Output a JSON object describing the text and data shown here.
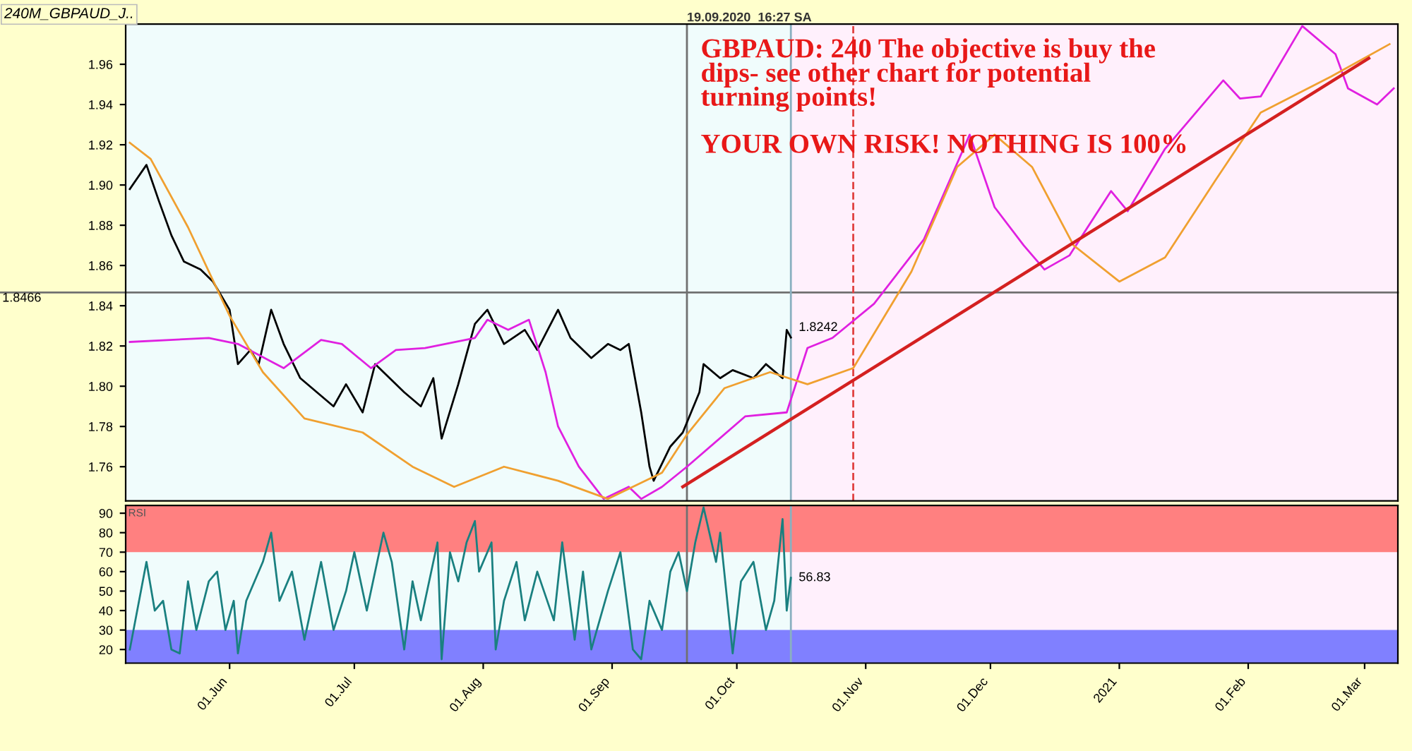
{
  "chart_data": [
    {
      "type": "line",
      "title": "240M_GBPAUD_J..",
      "annotations": [
        "GBPAUD: 240 The objective is buy the\ndips- see other chart for potential\nturning points!",
        "YOUR OWN RISK! NOTHING IS 100%",
        {
          "text": "1.8242",
          "x": "2020-10-14",
          "y": 1.8242
        }
      ],
      "series": [
        {
          "color": "#000000",
          "x": [
            "2020-05-08",
            "2020-05-12",
            "2020-05-15",
            "2020-05-18",
            "2020-05-21",
            "2020-05-25",
            "2020-05-28",
            "2020-06-01",
            "2020-06-03",
            "2020-06-06",
            "2020-06-08",
            "2020-06-11",
            "2020-06-14",
            "2020-06-18",
            "2020-06-22",
            "2020-06-26",
            "2020-06-29",
            "2020-07-03",
            "2020-07-06",
            "2020-07-13",
            "2020-07-17",
            "2020-07-20",
            "2020-07-22",
            "2020-07-26",
            "2020-07-30",
            "2020-08-02",
            "2020-08-06",
            "2020-08-11",
            "2020-08-14",
            "2020-08-19",
            "2020-08-22",
            "2020-08-27",
            "2020-08-31",
            "2020-09-03",
            "2020-09-05",
            "2020-09-08",
            "2020-09-10",
            "2020-09-11",
            "2020-09-15",
            "2020-09-18",
            "2020-09-22",
            "2020-09-23",
            "2020-09-27",
            "2020-09-30",
            "2020-10-05",
            "2020-10-08",
            "2020-10-12",
            "2020-10-13",
            "2020-10-14"
          ],
          "values": [
            1.898,
            1.91,
            1.892,
            1.875,
            1.862,
            1.858,
            1.852,
            1.838,
            1.811,
            1.818,
            1.811,
            1.838,
            1.821,
            1.804,
            1.797,
            1.79,
            1.801,
            1.787,
            1.811,
            1.797,
            1.79,
            1.804,
            1.774,
            1.801,
            1.831,
            1.838,
            1.821,
            1.828,
            1.818,
            1.838,
            1.824,
            1.814,
            1.821,
            1.818,
            1.821,
            1.787,
            1.76,
            1.753,
            1.77,
            1.777,
            1.797,
            1.811,
            1.804,
            1.808,
            1.804,
            1.811,
            1.804,
            1.828,
            1.8242
          ]
        },
        {
          "color": "#e020e0",
          "x": [
            "2020-05-08",
            "2020-05-27",
            "2020-06-03",
            "2020-06-14",
            "2020-06-23",
            "2020-06-28",
            "2020-07-05",
            "2020-07-11",
            "2020-07-18",
            "2020-07-30",
            "2020-08-02",
            "2020-08-07",
            "2020-08-12",
            "2020-08-16",
            "2020-08-19",
            "2020-08-24",
            "2020-08-30",
            "2020-09-05",
            "2020-09-08",
            "2020-09-13",
            "2020-09-19",
            "2020-10-03",
            "2020-10-13",
            "2020-10-18",
            "2020-10-24",
            "2020-11-03",
            "2020-11-15",
            "2020-11-26",
            "2020-12-02",
            "2020-12-09",
            "2020-12-14",
            "2020-12-20",
            "2020-12-30",
            "2021-01-03",
            "2021-01-12",
            "2021-01-26",
            "2021-01-30",
            "2021-02-04",
            "2021-02-14",
            "2021-02-22",
            "2021-02-25",
            "2021-03-04",
            "2021-03-08"
          ],
          "values": [
            1.822,
            1.824,
            1.821,
            1.809,
            1.823,
            1.821,
            1.809,
            1.818,
            1.819,
            1.824,
            1.833,
            1.828,
            1.833,
            1.807,
            1.78,
            1.76,
            1.744,
            1.75,
            1.744,
            1.75,
            1.76,
            1.785,
            1.787,
            1.819,
            1.824,
            1.841,
            1.873,
            1.925,
            1.889,
            1.87,
            1.858,
            1.865,
            1.897,
            1.887,
            1.918,
            1.952,
            1.943,
            1.944,
            1.979,
            1.965,
            1.948,
            1.94,
            1.948
          ]
        },
        {
          "color": "#f0a030",
          "x": [
            "2020-05-08",
            "2020-05-13",
            "2020-05-22",
            "2020-06-01",
            "2020-06-09",
            "2020-06-19",
            "2020-07-03",
            "2020-07-15",
            "2020-07-25",
            "2020-08-06",
            "2020-08-19",
            "2020-08-31",
            "2020-09-13",
            "2020-09-19",
            "2020-09-28",
            "2020-10-09",
            "2020-10-18",
            "2020-10-29",
            "2020-11-12",
            "2020-11-23",
            "2020-12-02",
            "2020-12-11",
            "2020-12-21",
            "2021-01-01",
            "2021-01-12",
            "2021-01-24",
            "2021-02-04",
            "2021-02-21",
            "2021-03-07"
          ],
          "values": [
            1.921,
            1.913,
            1.879,
            1.835,
            1.807,
            1.784,
            1.777,
            1.76,
            1.75,
            1.76,
            1.753,
            1.744,
            1.757,
            1.776,
            1.799,
            1.807,
            1.801,
            1.809,
            1.857,
            1.909,
            1.925,
            1.909,
            1.87,
            1.852,
            1.864,
            1.902,
            1.936,
            1.954,
            1.97
          ]
        },
        {
          "color": "#d42020",
          "x": [
            "2020-09-18",
            "2021-03-02"
          ],
          "values": [
            1.75,
            1.963
          ]
        }
      ],
      "xlim": [
        "2020-05-07",
        "2021-03-09"
      ],
      "ylim": [
        1.743,
        1.98
      ],
      "yticks": [
        {
          "value": 1.76,
          "label": "1.76"
        },
        {
          "value": 1.78,
          "label": "1.78"
        },
        {
          "value": 1.8,
          "label": "1.80"
        },
        {
          "value": 1.82,
          "label": "1.82"
        },
        {
          "value": 1.84,
          "label": "1.84"
        },
        {
          "value": 1.86,
          "label": "1.86"
        },
        {
          "value": 1.88,
          "label": "1.88"
        },
        {
          "value": 1.9,
          "label": "1.90"
        },
        {
          "value": 1.92,
          "label": "1.92"
        },
        {
          "value": 1.94,
          "label": "1.94"
        },
        {
          "value": 1.96,
          "label": "1.96"
        }
      ],
      "tick_labels": "y",
      "grid": false,
      "legend": false,
      "ref_lines": [
        {
          "axis": "y",
          "value": 1.8466,
          "label": "1.8466",
          "color": "#707070"
        },
        {
          "axis": "x",
          "value": "2020-09-19",
          "label": "19.09.2020  16:27 SA",
          "color": "#707070"
        },
        {
          "axis": "x",
          "value": "2020-10-14",
          "color": "#8ab0c0"
        },
        {
          "axis": "x",
          "value": "2020-10-29",
          "color": "#e04040",
          "line_style": "dashed"
        }
      ],
      "bands": [
        {
          "axis": "x",
          "from": "2020-05-07",
          "to": "2020-10-14",
          "color": "#f0fcfc"
        },
        {
          "axis": "x",
          "from": "2020-10-14",
          "to": "2021-03-09",
          "color": "#fff0fc"
        }
      ]
    },
    {
      "type": "line",
      "annotations": [
        "RSI"
      ],
      "series": [
        {
          "color": "#1a8080",
          "x": [
            "2020-05-08",
            "2020-05-12",
            "2020-05-14",
            "2020-05-16",
            "2020-05-18",
            "2020-05-20",
            "2020-05-22",
            "2020-05-24",
            "2020-05-27",
            "2020-05-29",
            "2020-05-31",
            "2020-06-02",
            "2020-06-03",
            "2020-06-05",
            "2020-06-09",
            "2020-06-11",
            "2020-06-13",
            "2020-06-16",
            "2020-06-19",
            "2020-06-23",
            "2020-06-26",
            "2020-06-29",
            "2020-07-01",
            "2020-07-04",
            "2020-07-08",
            "2020-07-10",
            "2020-07-13",
            "2020-07-15",
            "2020-07-17",
            "2020-07-21",
            "2020-07-22",
            "2020-07-24",
            "2020-07-26",
            "2020-07-28",
            "2020-07-30",
            "2020-07-31",
            "2020-08-03",
            "2020-08-04",
            "2020-08-06",
            "2020-08-09",
            "2020-08-11",
            "2020-08-14",
            "2020-08-18",
            "2020-08-20",
            "2020-08-23",
            "2020-08-25",
            "2020-08-27",
            "2020-08-31",
            "2020-09-03",
            "2020-09-06",
            "2020-09-08",
            "2020-09-10",
            "2020-09-13",
            "2020-09-15",
            "2020-09-17",
            "2020-09-19",
            "2020-09-21",
            "2020-09-23",
            "2020-09-26",
            "2020-09-27",
            "2020-09-30",
            "2020-10-02",
            "2020-10-05",
            "2020-10-08",
            "2020-10-10",
            "2020-10-12",
            "2020-10-13",
            "2020-10-14"
          ],
          "values": [
            20,
            65,
            40,
            45,
            20,
            18,
            55,
            30,
            55,
            60,
            30,
            45,
            18,
            45,
            65,
            80,
            45,
            60,
            25,
            65,
            30,
            50,
            70,
            40,
            80,
            65,
            20,
            55,
            35,
            75,
            15,
            70,
            55,
            75,
            86,
            60,
            75,
            20,
            45,
            65,
            35,
            60,
            35,
            75,
            25,
            60,
            20,
            50,
            70,
            20,
            15,
            45,
            30,
            60,
            70,
            50,
            75,
            93,
            65,
            80,
            18,
            55,
            65,
            30,
            45,
            87,
            40,
            56.83
          ],
          "value_labels": [
            null,
            null,
            null,
            null,
            null,
            null,
            null,
            null,
            null,
            null,
            null,
            null,
            null,
            null,
            null,
            null,
            null,
            null,
            null,
            null,
            null,
            null,
            null,
            null,
            null,
            null,
            null,
            null,
            null,
            null,
            null,
            null,
            null,
            null,
            null,
            null,
            null,
            null,
            null,
            null,
            null,
            null,
            null,
            null,
            null,
            null,
            null,
            null,
            null,
            null,
            null,
            null,
            null,
            null,
            null,
            null,
            null,
            null,
            null,
            null,
            null,
            null,
            null,
            null,
            null,
            null,
            null,
            "56.83"
          ]
        }
      ],
      "xlim": [
        "2020-05-07",
        "2021-03-09"
      ],
      "ylim": [
        13,
        94
      ],
      "yticks": [
        20,
        30,
        40,
        50,
        60,
        70,
        80,
        90
      ],
      "xticks": [
        {
          "value": "2020-06-01",
          "label": "01.Jun"
        },
        {
          "value": "2020-07-01",
          "label": "01.Jul"
        },
        {
          "value": "2020-08-01",
          "label": "01.Aug"
        },
        {
          "value": "2020-09-01",
          "label": "01.Sep"
        },
        {
          "value": "2020-10-01",
          "label": "01.Oct"
        },
        {
          "value": "2020-11-01",
          "label": "01.Nov"
        },
        {
          "value": "2020-12-01",
          "label": "01.Dec"
        },
        {
          "value": "2021-01-01",
          "label": "2021"
        },
        {
          "value": "2021-02-01",
          "label": "01.Feb"
        },
        {
          "value": "2021-03-01",
          "label": "01.Mar"
        }
      ],
      "grid": false,
      "legend": false,
      "ref_lines": [
        {
          "axis": "x",
          "value": "2020-09-19",
          "color": "#707070"
        },
        {
          "axis": "x",
          "value": "2020-10-14",
          "color": "#8ab0c0"
        }
      ],
      "bands": [
        {
          "axis": "x",
          "from": "2020-05-07",
          "to": "2020-10-14",
          "color": "#f0fcfc"
        },
        {
          "axis": "x",
          "from": "2020-10-14",
          "to": "2021-03-09",
          "color": "#fff0fc"
        },
        {
          "axis": "y",
          "from": 70,
          "to": 94,
          "color": "#ff8080"
        },
        {
          "axis": "y",
          "from": 13,
          "to": 30,
          "color": "#8080ff"
        }
      ]
    }
  ]
}
